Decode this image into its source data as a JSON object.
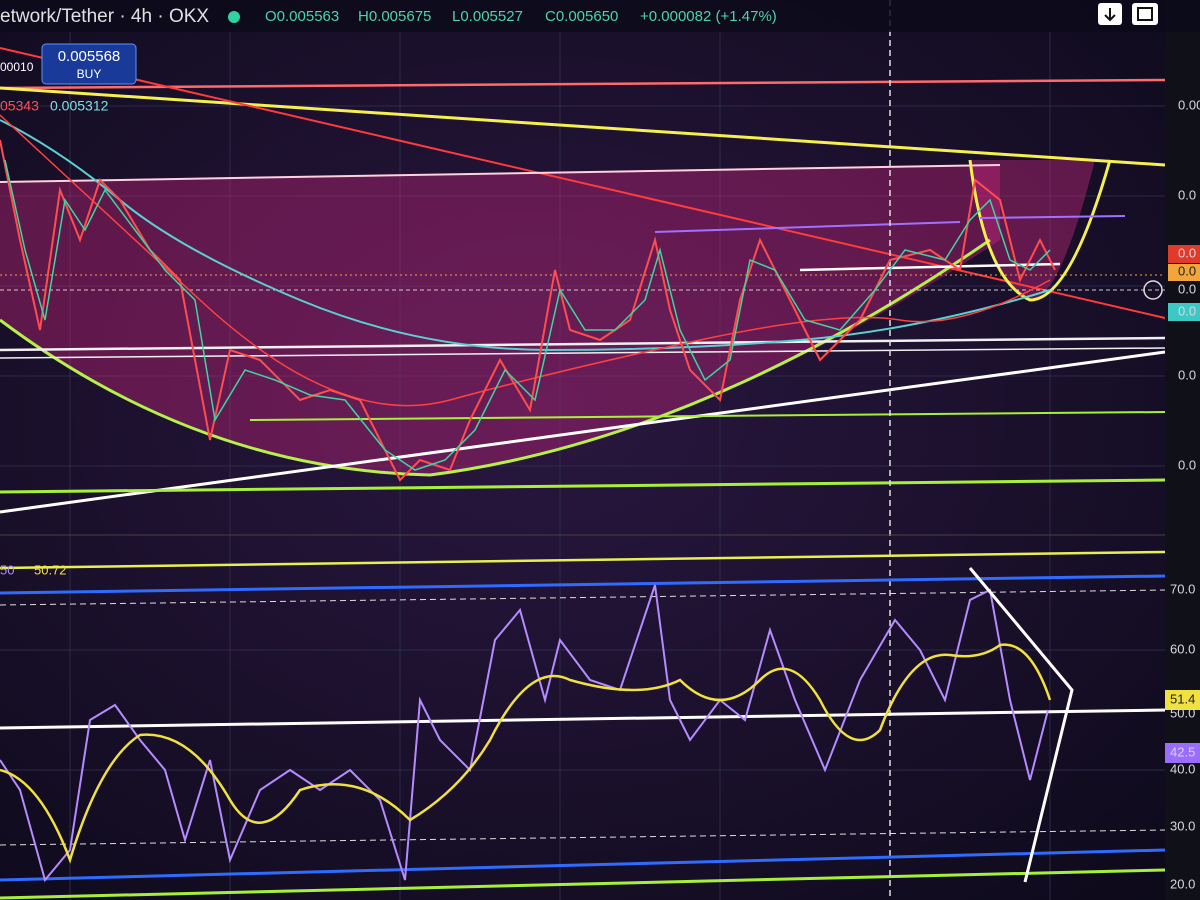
{
  "header": {
    "symbol": "etwork/Tether · 4h · OKX",
    "open": "O0.005563",
    "high": "H0.005675",
    "low": "L0.005527",
    "close": "C0.005650",
    "change": "+0.000082 (+1.47%)"
  },
  "buy_button": {
    "price": "0.005568",
    "label": "BUY"
  },
  "overlay_labels": {
    "left": "00010",
    "ma_red": "05343",
    "ma_teal": "0.005312"
  },
  "price_axis": [
    "0.00",
    "0.0",
    "0.0",
    "0.0",
    "0.0",
    "0.0",
    "0.0",
    "0.0"
  ],
  "rsi": {
    "length": "50",
    "value": "50.72",
    "axis": [
      "70.0",
      "60.0",
      "51.4",
      "50.0",
      "40.0",
      "42.5",
      "30.0",
      "20.0"
    ]
  }
}
